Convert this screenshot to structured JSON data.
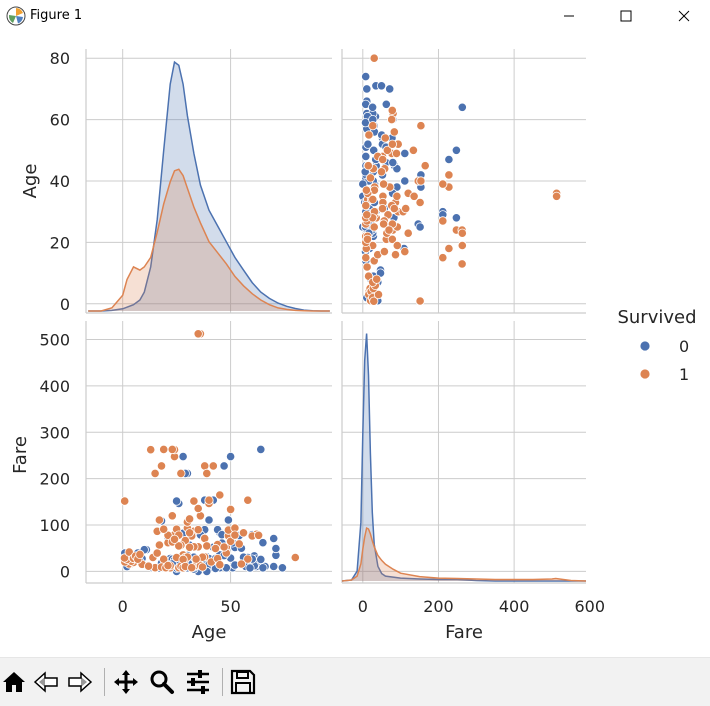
{
  "window": {
    "title": "Figure 1",
    "controls": [
      "minimize",
      "maximize",
      "close"
    ]
  },
  "toolbar": {
    "buttons": [
      "home-icon",
      "back-icon",
      "forward-icon",
      "pan-icon",
      "zoom-icon",
      "configure-subplots-icon",
      "save-icon"
    ]
  },
  "colors": {
    "survived_0": "#4c72b0",
    "survived_1": "#dd8452",
    "axes_bg": "#ffffff",
    "grid": "#cccccc"
  },
  "chart_data": {
    "type": "pairplot",
    "variables": [
      "Age",
      "Fare"
    ],
    "hue": "Survived",
    "legend": {
      "title": "Survived",
      "labels": [
        "0",
        "1"
      ],
      "placement": "right"
    },
    "grid": true,
    "axes": {
      "Age": {
        "label": "Age",
        "lim": [
          -17,
          97
        ],
        "ticks": [
          0,
          50
        ],
        "tick_labels_y": [
          0,
          20,
          40,
          60,
          80
        ],
        "lim_y": [
          -3,
          83
        ]
      },
      "Fare": {
        "label": "Fare",
        "lim": [
          -55,
          590
        ],
        "ticks": [
          0,
          200,
          400,
          600
        ],
        "lim_y": [
          -25,
          540
        ],
        "tick_labels_y": [
          0,
          100,
          200,
          300,
          400,
          500
        ]
      }
    },
    "kde_age": {
      "x": [
        -16,
        -10,
        -5,
        0,
        2,
        5,
        8,
        10,
        13,
        16,
        19,
        22,
        24,
        26,
        28,
        30,
        33,
        36,
        40,
        44,
        48,
        52,
        56,
        60,
        64,
        68,
        72,
        76,
        80,
        84,
        88,
        92,
        96
      ],
      "survived_0": [
        0,
        0,
        0.2,
        0.7,
        1.2,
        2,
        3.5,
        6,
        14,
        29,
        51,
        72,
        79,
        78,
        72,
        62,
        50,
        40,
        32,
        27,
        22,
        17,
        13,
        9,
        6,
        4,
        2.5,
        1.5,
        0.8,
        0.3,
        0.1,
        0,
        0
      ],
      "survived_1": [
        0,
        0,
        1,
        5,
        10,
        14,
        13,
        14,
        17,
        25,
        34,
        41,
        44.5,
        45,
        43,
        39,
        33,
        28,
        22,
        18.5,
        15,
        11,
        8,
        5.5,
        3.5,
        2,
        1,
        0.5,
        0.2,
        0.1,
        0,
        0,
        0
      ]
    },
    "kde_fare": {
      "x": [
        -55,
        -30,
        -15,
        -5,
        0,
        5,
        10,
        15,
        20,
        25,
        30,
        40,
        50,
        60,
        80,
        100,
        150,
        200,
        250,
        300,
        350,
        400,
        450,
        500,
        510,
        520,
        550,
        590
      ],
      "survived_0": [
        0,
        2,
        20,
        120,
        300,
        450,
        505,
        420,
        260,
        140,
        75,
        30,
        15,
        10,
        8,
        6,
        4,
        3,
        3,
        1,
        0,
        0,
        0,
        0,
        0,
        0,
        0,
        0
      ],
      "survived_1": [
        0,
        2,
        10,
        35,
        65,
        90,
        108,
        106,
        96,
        82,
        70,
        52,
        42,
        34,
        24,
        16,
        9,
        6,
        5,
        4,
        3,
        3,
        3,
        4,
        5,
        4,
        1,
        0
      ]
    },
    "scatter": {
      "survived_0": [
        [
          22,
          7.25
        ],
        [
          35,
          8.05
        ],
        [
          54,
          51.86
        ],
        [
          2,
          21.08
        ],
        [
          20,
          8.05
        ],
        [
          39,
          31.28
        ],
        [
          14,
          7.85
        ],
        [
          2,
          29.13
        ],
        [
          31,
          18
        ],
        [
          21,
          7.23
        ],
        [
          21,
          7.84
        ],
        [
          28,
          7.9
        ],
        [
          40,
          27.72
        ],
        [
          66,
          10.5
        ],
        [
          28,
          82.17
        ],
        [
          42,
          52
        ],
        [
          21,
          8.05
        ],
        [
          18,
          18
        ],
        [
          40,
          9.48
        ],
        [
          27,
          21
        ],
        [
          65,
          61.98
        ],
        [
          28.5,
          7.23
        ],
        [
          22,
          27.9
        ],
        [
          19,
          9.22
        ],
        [
          30,
          34.38
        ],
        [
          24,
          26.55
        ],
        [
          45,
          83.48
        ],
        [
          23,
          26.25
        ],
        [
          19,
          12.35
        ],
        [
          37,
          7.75
        ],
        [
          24,
          10.5
        ],
        [
          59,
          14.5
        ],
        [
          71,
          34.65
        ],
        [
          34,
          13
        ],
        [
          21,
          11.5
        ],
        [
          41,
          7.85
        ],
        [
          33,
          7.9
        ],
        [
          46,
          61.18
        ],
        [
          28,
          26
        ],
        [
          45,
          8.05
        ],
        [
          25,
          0
        ],
        [
          36,
          10.5
        ],
        [
          29,
          7.75
        ],
        [
          18,
          108.9
        ],
        [
          16,
          39.69
        ],
        [
          25,
          7.05
        ],
        [
          24,
          24.15
        ],
        [
          55,
          16
        ],
        [
          42,
          8.66
        ],
        [
          30,
          7.83
        ],
        [
          47,
          227.52
        ],
        [
          19,
          263
        ],
        [
          64,
          263
        ],
        [
          61,
          33.5
        ],
        [
          62,
          10.5
        ],
        [
          26,
          7.75
        ],
        [
          34,
          26
        ],
        [
          50,
          28.71
        ],
        [
          38,
          153.46
        ],
        [
          49,
          110.88
        ],
        [
          40,
          15.5
        ],
        [
          58,
          29.7
        ],
        [
          45,
          35.5
        ],
        [
          62,
          26.55
        ],
        [
          63,
          77.96
        ],
        [
          70,
          71
        ],
        [
          36,
          120
        ],
        [
          28,
          247.52
        ],
        [
          44,
          90
        ],
        [
          54,
          77.29
        ],
        [
          30,
          211.34
        ],
        [
          47,
          52
        ],
        [
          60,
          79.2
        ],
        [
          52,
          51.86
        ],
        [
          32,
          18.5
        ],
        [
          65,
          7.75
        ],
        [
          71,
          49.5
        ],
        [
          74,
          7.78
        ],
        [
          51,
          8.05
        ],
        [
          56,
          30.7
        ],
        [
          46,
          79.2
        ],
        [
          43,
          27.72
        ],
        [
          40,
          110.88
        ],
        [
          29,
          211.34
        ],
        [
          38,
          90
        ],
        [
          55,
          50
        ],
        [
          61,
          12.35
        ],
        [
          51,
          61.38
        ],
        [
          35,
          0
        ],
        [
          39,
          0
        ],
        [
          48,
          7.85
        ],
        [
          57,
          10.5
        ],
        [
          26,
          14.45
        ],
        [
          21,
          73.5
        ],
        [
          33,
          5
        ],
        [
          20,
          9.5
        ],
        [
          17,
          7.22
        ],
        [
          23,
          16.1
        ],
        [
          37,
          26
        ],
        [
          31,
          56.5
        ],
        [
          64,
          26
        ],
        [
          45,
          13.5
        ],
        [
          43,
          6.45
        ],
        [
          15,
          7.23
        ],
        [
          7,
          39.69
        ],
        [
          9,
          27.9
        ],
        [
          11,
          46.9
        ],
        [
          4,
          29.13
        ],
        [
          8,
          21.08
        ],
        [
          3,
          31.39
        ],
        [
          10,
          46.9
        ],
        [
          1,
          39.69
        ],
        [
          2,
          10.46
        ],
        [
          6,
          31.28
        ],
        [
          42,
          153.46
        ],
        [
          36,
          78.85
        ],
        [
          33,
          30.7
        ],
        [
          52,
          13.5
        ],
        [
          59,
          7.25
        ],
        [
          47,
          34.02
        ],
        [
          33,
          9.5
        ],
        [
          60,
          26.55
        ],
        [
          70,
          10.5
        ],
        [
          44,
          27
        ],
        [
          26,
          146.52
        ],
        [
          38,
          71.28
        ],
        [
          50,
          247.52
        ],
        [
          25,
          151.55
        ]
      ],
      "survived_1": [
        [
          38,
          71.28
        ],
        [
          26,
          7.93
        ],
        [
          35,
          53.1
        ],
        [
          27,
          11.13
        ],
        [
          14,
          30.07
        ],
        [
          4,
          16.7
        ],
        [
          58,
          26.55
        ],
        [
          55,
          16
        ],
        [
          34,
          13
        ],
        [
          15,
          8.03
        ],
        [
          28,
          35.5
        ],
        [
          38,
          31.39
        ],
        [
          19,
          263
        ],
        [
          40,
          146.52
        ],
        [
          3,
          15.9
        ],
        [
          49,
          76.73
        ],
        [
          29,
          26
        ],
        [
          21,
          61.98
        ],
        [
          5,
          19.26
        ],
        [
          24,
          247.52
        ],
        [
          48,
          52
        ],
        [
          29,
          30.5
        ],
        [
          36,
          512.33
        ],
        [
          35,
          512.33
        ],
        [
          44,
          57.98
        ],
        [
          50,
          133.65
        ],
        [
          22,
          7.75
        ],
        [
          33,
          86.5
        ],
        [
          24,
          79.2
        ],
        [
          21,
          77.96
        ],
        [
          27,
          211.34
        ],
        [
          16,
          86.5
        ],
        [
          40,
          153.46
        ],
        [
          17,
          110.88
        ],
        [
          24,
          262.38
        ],
        [
          23,
          263
        ],
        [
          32,
          76.29
        ],
        [
          45,
          164.87
        ],
        [
          49,
          89.1
        ],
        [
          30,
          93.5
        ],
        [
          42,
          227.52
        ],
        [
          18,
          227.52
        ],
        [
          38,
          227.52
        ],
        [
          16,
          39.4
        ],
        [
          36,
          120
        ],
        [
          19,
          91.08
        ],
        [
          13,
          262.38
        ],
        [
          17,
          57
        ],
        [
          33,
          151.55
        ],
        [
          30,
          106.43
        ],
        [
          39,
          211.34
        ],
        [
          15,
          211.34
        ],
        [
          0.92,
          151.55
        ],
        [
          1,
          20.58
        ],
        [
          4,
          22.03
        ],
        [
          2,
          26
        ],
        [
          0.83,
          29
        ],
        [
          3,
          41.58
        ],
        [
          5,
          27.75
        ],
        [
          9,
          15.25
        ],
        [
          6,
          33
        ],
        [
          7,
          26.25
        ],
        [
          8,
          36.75
        ],
        [
          12,
          11.24
        ],
        [
          19,
          26.28
        ],
        [
          31,
          83.16
        ],
        [
          35,
          90
        ],
        [
          25,
          91.08
        ],
        [
          33,
          53.1
        ],
        [
          31,
          113.28
        ],
        [
          52,
          93.5
        ],
        [
          29,
          66.6
        ],
        [
          48,
          39.6
        ],
        [
          41,
          20.21
        ],
        [
          62,
          80
        ],
        [
          56,
          83.16
        ],
        [
          54,
          59.4
        ],
        [
          47,
          52.55
        ],
        [
          60,
          76.29
        ],
        [
          39,
          55
        ],
        [
          50,
          65
        ],
        [
          35,
          135.63
        ],
        [
          26,
          78.27
        ],
        [
          34,
          23
        ],
        [
          23,
          63.36
        ],
        [
          44,
          27.72
        ],
        [
          45,
          14.45
        ],
        [
          58,
          153.46
        ],
        [
          80,
          30
        ],
        [
          63,
          77.96
        ],
        [
          28,
          7.75
        ],
        [
          27,
          56.5
        ],
        [
          18,
          9.35
        ],
        [
          22,
          12.35
        ],
        [
          26,
          55
        ],
        [
          52,
          78.27
        ],
        [
          30,
          31
        ],
        [
          25,
          30
        ],
        [
          23,
          120
        ],
        [
          24,
          69.3
        ],
        [
          31,
          52
        ],
        [
          37,
          30.7
        ],
        [
          28,
          26
        ],
        [
          20,
          7.93
        ],
        [
          36,
          13
        ],
        [
          29,
          10.5
        ],
        [
          32,
          7.92
        ],
        [
          21,
          12.48
        ],
        [
          34,
          26.55
        ],
        [
          43,
          49.5
        ],
        [
          37,
          9.59
        ]
      ]
    }
  }
}
